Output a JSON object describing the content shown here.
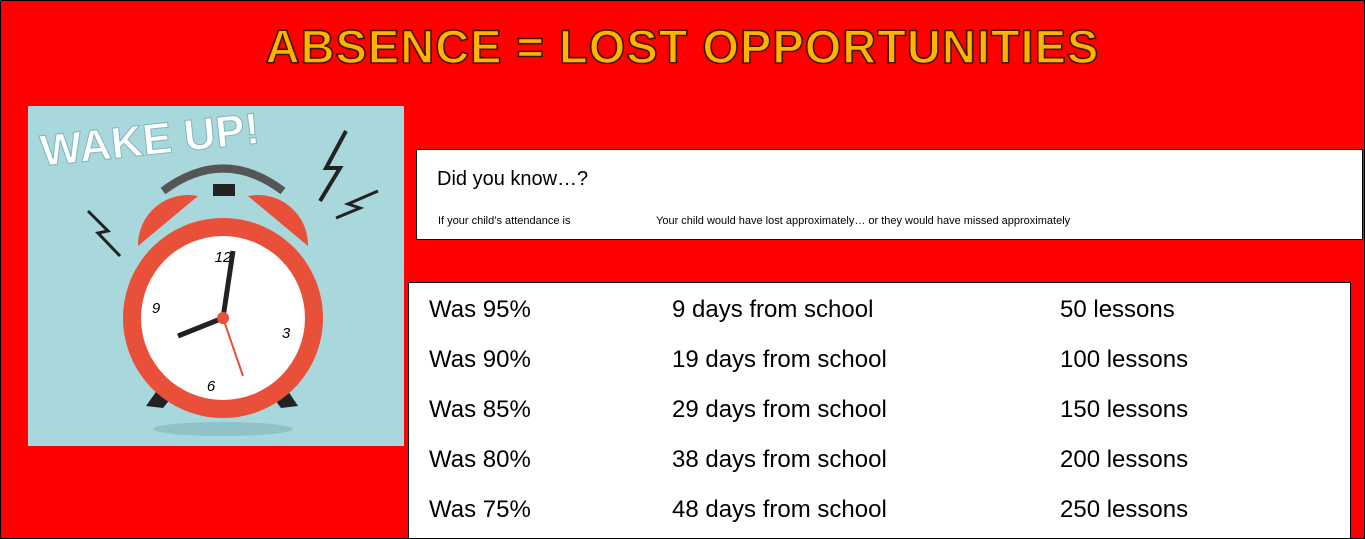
{
  "header": {
    "title": "ABSENCE = LOST OPPORTUNITIES"
  },
  "image": {
    "text": "WAKE UP!",
    "clock_numbers": [
      "12",
      "3",
      "6",
      "9"
    ]
  },
  "info": {
    "heading": "Did you know…?",
    "columns": [
      "If your child’s attendance is",
      "Your child would have lost approximately… or they would have missed approximately"
    ]
  },
  "table": {
    "rows": [
      [
        "Was 95%",
        "9 days from school",
        "50 lessons"
      ],
      [
        "Was 90%",
        "19 days from school",
        "100 lessons"
      ],
      [
        "Was 85%",
        "29 days from school",
        "150 lessons"
      ],
      [
        "Was 80%",
        "38 days from school",
        "200 lessons"
      ],
      [
        "Was 75%",
        "48 days from school",
        "250 lessons"
      ]
    ]
  }
}
